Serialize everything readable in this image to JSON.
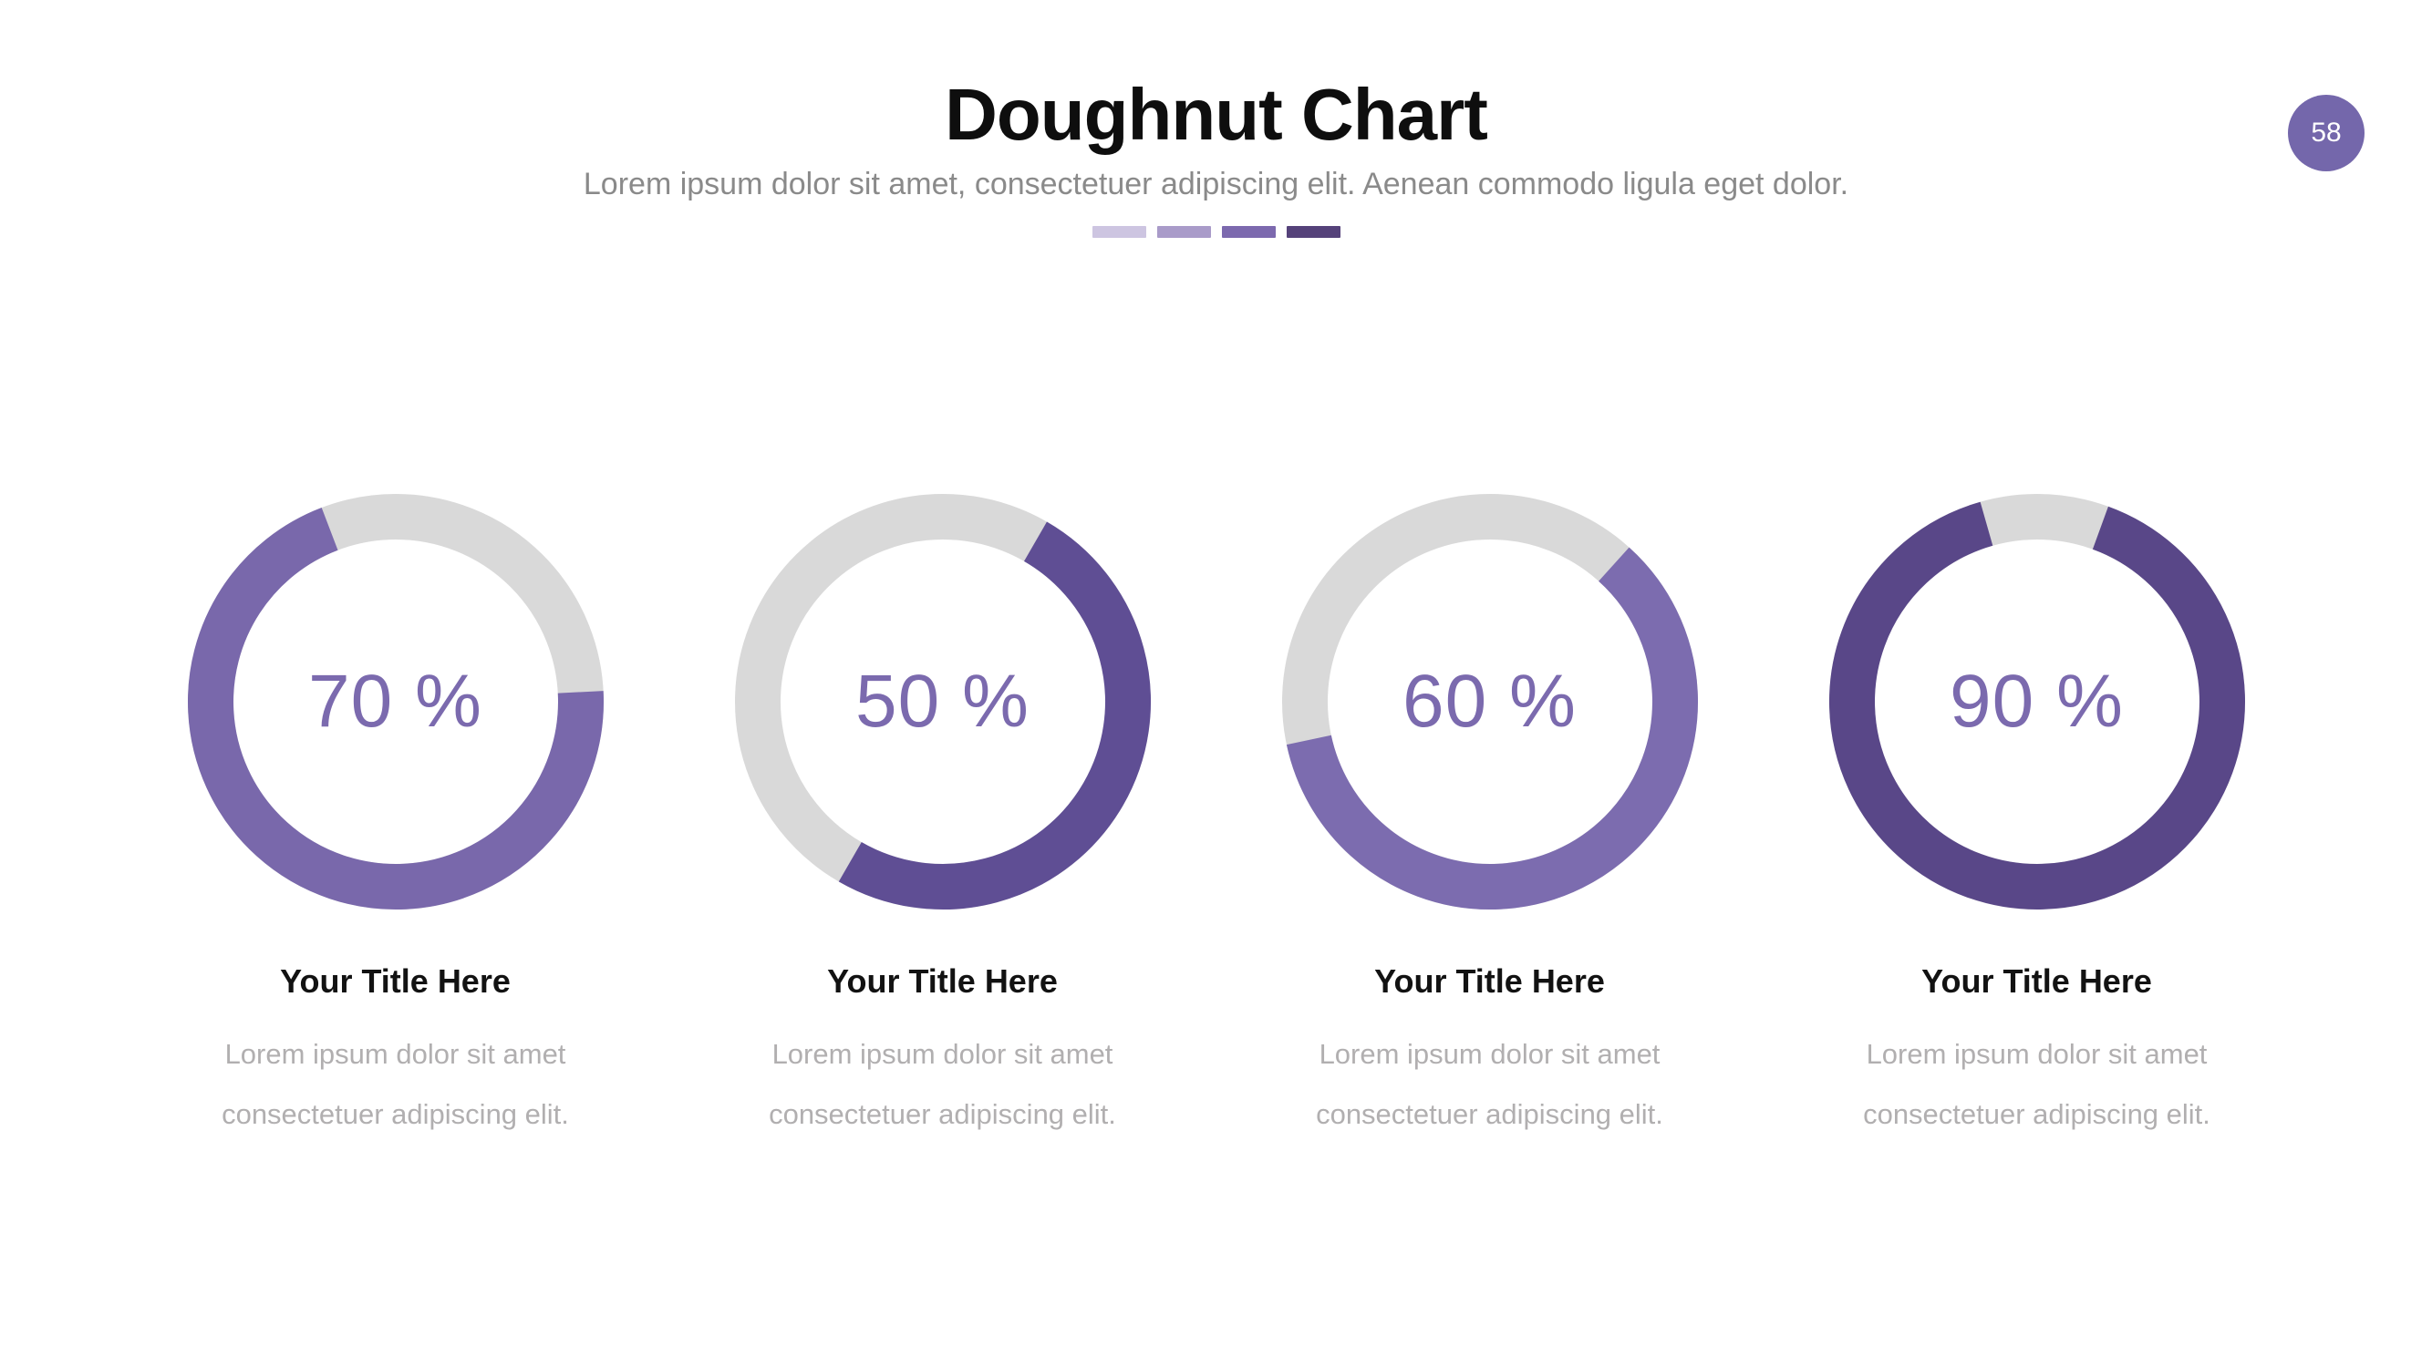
{
  "slide": {
    "title": "Doughnut Chart",
    "subtitle": "Lorem ipsum dolor sit amet, consectetuer adipiscing elit. Aenean commodo ligula eget dolor.",
    "page_number": "58",
    "background_color": "#ffffff",
    "badge_color": "#7467ab",
    "accent_dashes": [
      "#cdc5e1",
      "#a99bc9",
      "#7c69ae",
      "#55427a"
    ]
  },
  "chart_data": {
    "type": "doughnut",
    "track_color": "#d9d9d9",
    "value_label_color": "#7b6aae",
    "value_range": [
      0,
      100
    ],
    "charts": [
      {
        "value": 70,
        "label": "70 %",
        "start_angle_deg": 87,
        "ring_color": "#7968ab",
        "title": "Your Title Here",
        "body_line1": "Lorem ipsum dolor sit amet",
        "body_line2": "consectetuer adipiscing elit."
      },
      {
        "value": 50,
        "label": "50 %",
        "start_angle_deg": 30,
        "ring_color": "#5f4e94",
        "title": "Your Title Here",
        "body_line1": "Lorem ipsum dolor sit amet",
        "body_line2": "consectetuer adipiscing elit."
      },
      {
        "value": 60,
        "label": "60 %",
        "start_angle_deg": 42,
        "ring_color": "#7c6caf",
        "title": "Your Title Here",
        "body_line1": "Lorem ipsum dolor sit amet",
        "body_line2": "consectetuer adipiscing elit."
      },
      {
        "value": 90,
        "label": "90 %",
        "start_angle_deg": 20,
        "ring_color": "#594788",
        "title": "Your Title Here",
        "body_line1": "Lorem ipsum dolor sit amet",
        "body_line2": "consectetuer adipiscing elit."
      }
    ]
  }
}
